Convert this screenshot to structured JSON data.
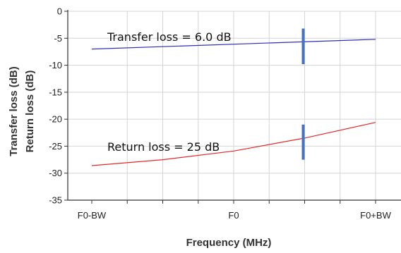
{
  "chart_data": {
    "type": "line",
    "xlabel": "Frequency (MHz)",
    "ylabel_lines": [
      "Transfer loss (dB)",
      "Return loss (dB)"
    ],
    "x_tick_labels": [
      "F0-BW",
      "F0",
      "F0+BW"
    ],
    "x": [
      -1,
      1
    ],
    "ylim": [
      -35,
      0
    ],
    "y_ticks": [
      0,
      -5,
      -10,
      -15,
      -20,
      -25,
      -30,
      -35
    ],
    "grid": true,
    "series": [
      {
        "key": "transfer",
        "color": "#2d2db8",
        "x": [
          -1,
          1
        ],
        "values": [
          -7.0,
          -5.2
        ]
      },
      {
        "key": "return",
        "color": "#e32a2a",
        "x": [
          -1,
          -0.5,
          0,
          0.5,
          1
        ],
        "values": [
          -28.6,
          -27.5,
          -25.9,
          -23.5,
          -20.6
        ]
      }
    ],
    "markers": [
      {
        "key": "transfer_marker",
        "x": 0.49,
        "ymin": -9.8,
        "ymax": -3.2,
        "color": "#4472c4"
      },
      {
        "key": "return_marker",
        "x": 0.49,
        "ymin": -27.5,
        "ymax": -21.0,
        "color": "#4472c4"
      }
    ],
    "annotations": [
      {
        "key": "transfer",
        "text": "Transfer loss = 6.0 dB"
      },
      {
        "key": "return",
        "text": "Return loss = 25 dB"
      }
    ]
  }
}
